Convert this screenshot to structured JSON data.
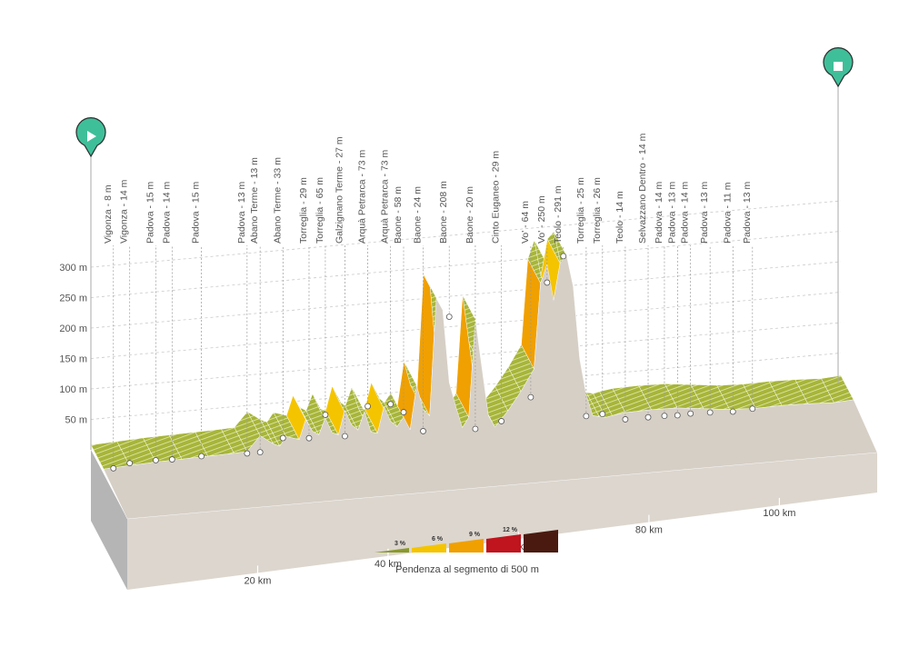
{
  "chart_data": {
    "type": "area",
    "title": "",
    "xlabel": "",
    "ylabel": "",
    "xlim": [
      0,
      115
    ],
    "ylim": [
      0,
      300
    ],
    "x_ticks": [
      20,
      40,
      60,
      80,
      100
    ],
    "x_tick_labels": [
      "20 km",
      "40 km",
      "60 km",
      "80 km",
      "100 km"
    ],
    "y_ticks": [
      50,
      100,
      150,
      200,
      250,
      300
    ],
    "y_tick_labels": [
      "50 m",
      "100 m",
      "150 m",
      "200 m",
      "250 m",
      "300 m"
    ],
    "profile": {
      "x": [
        0,
        4,
        8,
        12,
        16,
        20,
        22,
        24,
        26,
        27,
        28,
        30,
        31,
        32,
        33,
        34,
        35,
        36,
        37,
        38,
        39,
        40,
        41,
        42,
        43,
        44,
        45,
        46,
        47,
        48,
        49,
        50,
        51,
        52,
        53,
        54,
        55,
        56,
        57,
        58,
        59,
        60,
        62,
        64,
        66,
        67,
        68,
        69,
        70,
        71,
        72,
        73,
        74,
        75,
        76,
        77,
        78,
        80,
        84,
        88,
        92,
        96,
        100,
        104,
        108,
        112,
        115
      ],
      "y": [
        8,
        10,
        12,
        13,
        14,
        15,
        16,
        40,
        25,
        20,
        35,
        28,
        60,
        40,
        33,
        60,
        35,
        30,
        70,
        45,
        35,
        65,
        30,
        27,
        70,
        45,
        35,
        50,
        28,
        100,
        60,
        48,
        240,
        220,
        100,
        60,
        24,
        40,
        200,
        120,
        40,
        20,
        45,
        75,
        110,
        250,
        280,
        220,
        280,
        291,
        240,
        120,
        60,
        25,
        22,
        20,
        22,
        25,
        26,
        25,
        20,
        15,
        13,
        14,
        13,
        11,
        13
      ]
    },
    "waypoints": [
      {
        "label": "Vigonza - 8 m",
        "x": 1.5,
        "y": 8
      },
      {
        "label": "Vigonza - 14 m",
        "x": 4,
        "y": 14
      },
      {
        "label": "Padova - 15 m",
        "x": 8,
        "y": 15
      },
      {
        "label": "Padova - 14 m",
        "x": 10.5,
        "y": 14
      },
      {
        "label": "Padova - 15 m",
        "x": 15,
        "y": 15
      },
      {
        "label": "Padova - 13 m",
        "x": 22,
        "y": 13
      },
      {
        "label": "Abano Terme - 13 m",
        "x": 24,
        "y": 13
      },
      {
        "label": "Abano Terme - 33 m",
        "x": 27.5,
        "y": 33
      },
      {
        "label": "Torreglia - 29 m",
        "x": 31.5,
        "y": 29
      },
      {
        "label": "Torreglia - 65 m",
        "x": 34,
        "y": 65
      },
      {
        "label": "Galzignano Terme - 27 m",
        "x": 37,
        "y": 27
      },
      {
        "label": "Arquà Petrarca - 73 m",
        "x": 40.5,
        "y": 73
      },
      {
        "label": "Arquà Petrarca - 73 m",
        "x": 44,
        "y": 73
      },
      {
        "label": "Baone - 58 m",
        "x": 46,
        "y": 58
      },
      {
        "label": "Baone - 24 m",
        "x": 49,
        "y": 24
      },
      {
        "label": "Baone - 208 m",
        "x": 53,
        "y": 208
      },
      {
        "label": "Baone - 20 m",
        "x": 57,
        "y": 20
      },
      {
        "label": "Cinto Euganeo - 29 m",
        "x": 61,
        "y": 29
      },
      {
        "label": "Vo' - 64 m",
        "x": 65.5,
        "y": 64
      },
      {
        "label": "Vo' - 250 m",
        "x": 68,
        "y": 250
      },
      {
        "label": "Teolo - 291 m",
        "x": 70.5,
        "y": 291
      },
      {
        "label": "Torreglia - 25 m",
        "x": 74,
        "y": 25
      },
      {
        "label": "Torreglia - 26 m",
        "x": 76.5,
        "y": 26
      },
      {
        "label": "Teolo - 14 m",
        "x": 80,
        "y": 14
      },
      {
        "label": "Selvazzano Dentro - 14 m",
        "x": 83.5,
        "y": 14
      },
      {
        "label": "Padova - 14 m",
        "x": 86,
        "y": 14
      },
      {
        "label": "Padova - 13 m",
        "x": 88,
        "y": 13
      },
      {
        "label": "Padova - 14 m",
        "x": 90,
        "y": 14
      },
      {
        "label": "Padova - 13 m",
        "x": 93,
        "y": 13
      },
      {
        "label": "Padova - 11 m",
        "x": 96.5,
        "y": 11
      },
      {
        "label": "Padova - 13 m",
        "x": 99.5,
        "y": 13
      }
    ],
    "legend": {
      "title": "Pendenza al segmento di 500 m",
      "items": [
        {
          "label": "3 %",
          "color": "#8a9a2b"
        },
        {
          "label": "6 %",
          "color": "#f5c400"
        },
        {
          "label": "9 %",
          "color": "#f0a000"
        },
        {
          "label": "12 %",
          "color": "#c0141e"
        },
        {
          "label": "",
          "color": "#4a1a10"
        }
      ]
    },
    "colors": {
      "ground": "#d6cfc6",
      "base_front": "#dcd6ce",
      "base_side": "#b5b5b5",
      "flat": "#8a9a2b",
      "climb_light": "#f5c400",
      "climb_mid": "#f0a000",
      "marker": "#3fbf99"
    },
    "markers": {
      "start": "play-icon",
      "finish": "stop-icon"
    }
  }
}
